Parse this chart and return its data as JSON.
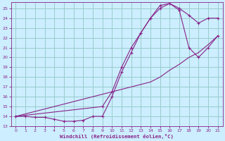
{
  "xlabel": "Windchill (Refroidissement éolien,°C)",
  "bg_color": "#cceeff",
  "grid_color": "#99cccc",
  "line_color": "#882288",
  "xlim": [
    -0.5,
    21.5
  ],
  "ylim": [
    13,
    25.6
  ],
  "xticks": [
    0,
    1,
    2,
    3,
    4,
    5,
    6,
    7,
    8,
    9,
    10,
    11,
    12,
    13,
    14,
    15,
    16,
    17,
    18,
    19,
    20,
    21
  ],
  "yticks": [
    13,
    14,
    15,
    16,
    17,
    18,
    19,
    20,
    21,
    22,
    23,
    24,
    25
  ],
  "line1_x": [
    0,
    1,
    2,
    3,
    4,
    5,
    6,
    7,
    8,
    9,
    10,
    11,
    12,
    13,
    14,
    15,
    16,
    17,
    18,
    19,
    20,
    21
  ],
  "line1_y": [
    14.0,
    14.0,
    13.9,
    13.9,
    13.7,
    13.5,
    13.5,
    13.6,
    14.0,
    14.0,
    16.0,
    18.5,
    20.5,
    22.5,
    24.0,
    25.3,
    25.5,
    25.0,
    24.3,
    23.5,
    24.0,
    24.0
  ],
  "line2_x": [
    0,
    9,
    10,
    11,
    12,
    13,
    14,
    15,
    16,
    17,
    18,
    19,
    20,
    21
  ],
  "line2_y": [
    14.0,
    15.0,
    16.5,
    19.0,
    21.0,
    22.5,
    24.0,
    25.0,
    25.5,
    24.8,
    21.0,
    20.0,
    21.0,
    22.2
  ],
  "line3_x": [
    0,
    14,
    15,
    16,
    17,
    18,
    19,
    20,
    21
  ],
  "line3_y": [
    14.0,
    17.5,
    18.0,
    18.7,
    19.3,
    20.0,
    20.5,
    21.3,
    22.2
  ]
}
